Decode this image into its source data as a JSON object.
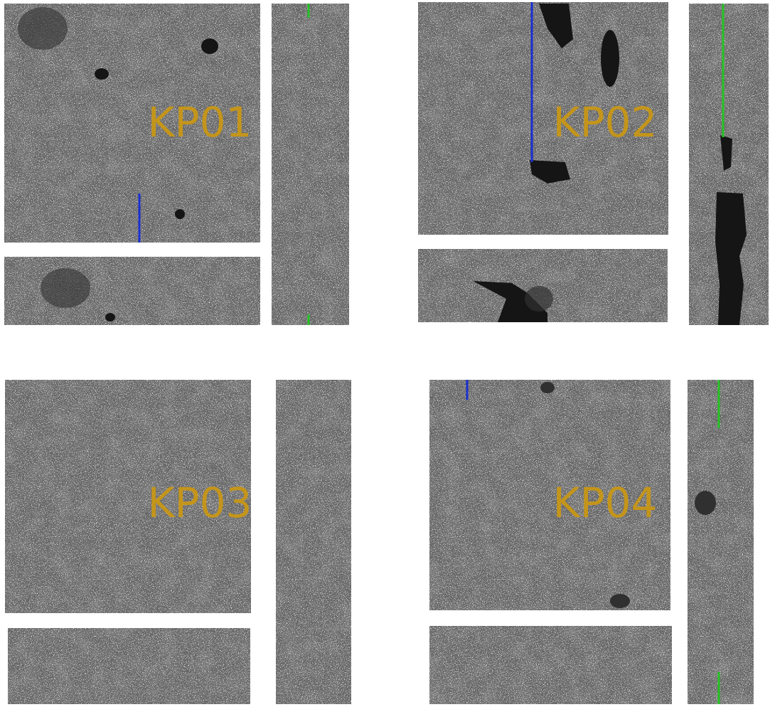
{
  "panels": [
    {
      "label": "KP01"
    },
    {
      "label": "KP02"
    },
    {
      "label": "KP03"
    },
    {
      "label": "KP04"
    }
  ]
}
